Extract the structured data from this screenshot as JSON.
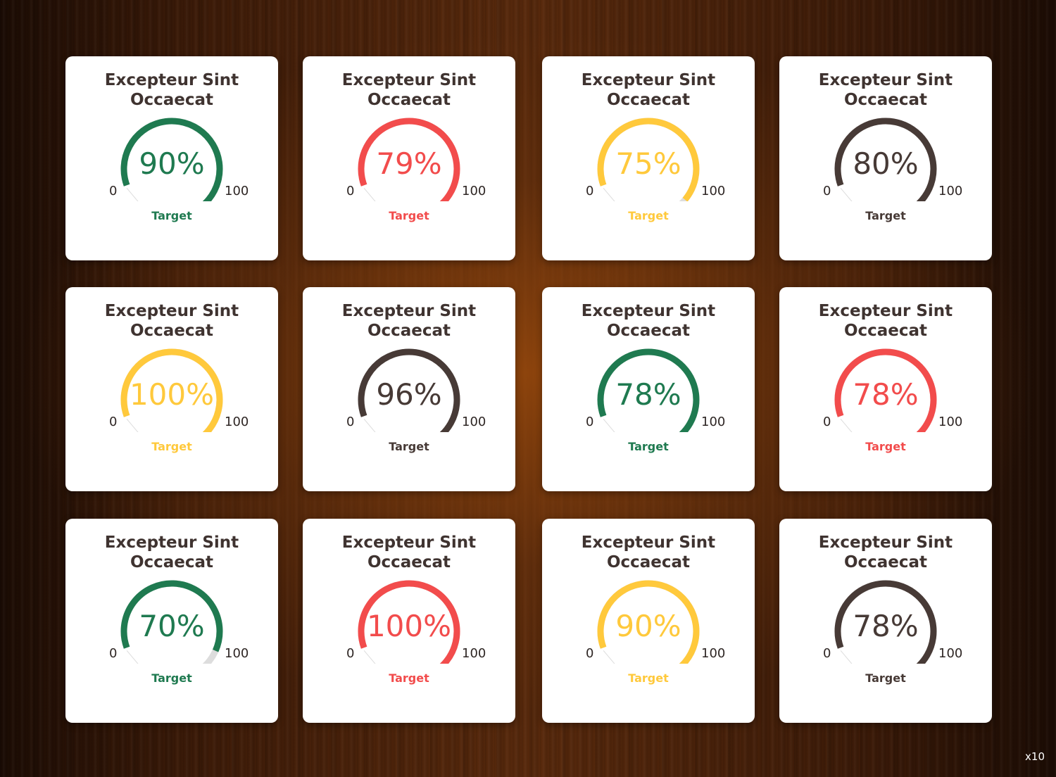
{
  "colors": {
    "green": "#1f7a50",
    "red": "#f24c4c",
    "yellow": "#ffc93c",
    "brown": "#473a36",
    "track": "#dddddd",
    "card_background": "#ffffff"
  },
  "cards": [
    {
      "title": "Excepteur Sint Occaecat",
      "value": 90,
      "value_text": "90%",
      "min": "0",
      "max": "100",
      "target_label": "Target",
      "color": "green"
    },
    {
      "title": "Excepteur Sint Occaecat",
      "value": 79,
      "value_text": "79%",
      "min": "0",
      "max": "100",
      "target_label": "Target",
      "color": "red"
    },
    {
      "title": "Excepteur Sint Occaecat",
      "value": 75,
      "value_text": "75%",
      "min": "0",
      "max": "100",
      "target_label": "Target",
      "color": "yellow"
    },
    {
      "title": "Excepteur Sint Occaecat",
      "value": 80,
      "value_text": "80%",
      "min": "0",
      "max": "100",
      "target_label": "Target",
      "color": "brown"
    },
    {
      "title": "Excepteur Sint Occaecat",
      "value": 100,
      "value_text": "100%",
      "min": "0",
      "max": "100",
      "target_label": "Target",
      "color": "yellow"
    },
    {
      "title": "Excepteur Sint Occaecat",
      "value": 96,
      "value_text": "96%",
      "min": "0",
      "max": "100",
      "target_label": "Target",
      "color": "brown"
    },
    {
      "title": "Excepteur Sint Occaecat",
      "value": 78,
      "value_text": "78%",
      "min": "0",
      "max": "100",
      "target_label": "Target",
      "color": "green"
    },
    {
      "title": "Excepteur Sint Occaecat",
      "value": 78,
      "value_text": "78%",
      "min": "0",
      "max": "100",
      "target_label": "Target",
      "color": "red"
    },
    {
      "title": "Excepteur Sint Occaecat",
      "value": 70,
      "value_text": "70%",
      "min": "0",
      "max": "100",
      "target_label": "Target",
      "color": "green"
    },
    {
      "title": "Excepteur Sint Occaecat",
      "value": 100,
      "value_text": "100%",
      "min": "0",
      "max": "100",
      "target_label": "Target",
      "color": "red"
    },
    {
      "title": "Excepteur Sint Occaecat",
      "value": 90,
      "value_text": "90%",
      "min": "0",
      "max": "100",
      "target_label": "Target",
      "color": "yellow"
    },
    {
      "title": "Excepteur Sint Occaecat",
      "value": 78,
      "value_text": "78%",
      "min": "0",
      "max": "100",
      "target_label": "Target",
      "color": "brown"
    }
  ],
  "corner_note": "x10"
}
